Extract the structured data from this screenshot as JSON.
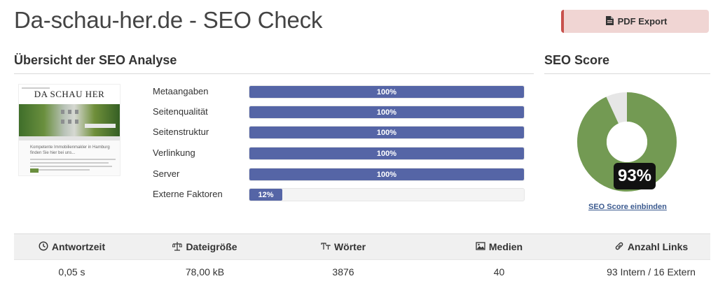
{
  "page": {
    "title": "Da-schau-her.de - SEO Check"
  },
  "toolbar": {
    "pdf_export_label": "PDF Export",
    "pdf_icon": "file-pdf-icon"
  },
  "overview": {
    "heading": "Übersicht der SEO Analyse",
    "thumbnail": {
      "masthead": "DA SCHAU HER",
      "teaser": "Kompetente Immobilienmakler in Hamburg finden Sie hier bei uns..."
    },
    "metrics": [
      {
        "label": "Metaangaben",
        "value": 100,
        "display": "100%"
      },
      {
        "label": "Seitenqualität",
        "value": 100,
        "display": "100%"
      },
      {
        "label": "Seitenstruktur",
        "value": 100,
        "display": "100%"
      },
      {
        "label": "Verlinkung",
        "value": 100,
        "display": "100%"
      },
      {
        "label": "Server",
        "value": 100,
        "display": "100%"
      },
      {
        "label": "Externe Faktoren",
        "value": 12,
        "display": "12%"
      }
    ]
  },
  "score": {
    "heading": "SEO Score",
    "value": 93,
    "display": "93%",
    "embed_link": "SEO Score einbinden",
    "colors": {
      "score": "#739a53",
      "rest": "#e6e6e6"
    }
  },
  "stats": {
    "headers": [
      {
        "label": "Antwortzeit",
        "icon": "clock-icon"
      },
      {
        "label": "Dateigröße",
        "icon": "scale-icon"
      },
      {
        "label": "Wörter",
        "icon": "text-size-icon"
      },
      {
        "label": "Medien",
        "icon": "image-icon"
      },
      {
        "label": "Anzahl Links",
        "icon": "link-icon"
      }
    ],
    "values": [
      "0,05 s",
      "78,00 kB",
      "3876",
      "40",
      "93 Intern / 16 Extern"
    ]
  },
  "colors": {
    "bar_fill": "#5565a6",
    "pdf_button_bg": "#f0d5d3",
    "pdf_button_accent": "#c8524d"
  }
}
